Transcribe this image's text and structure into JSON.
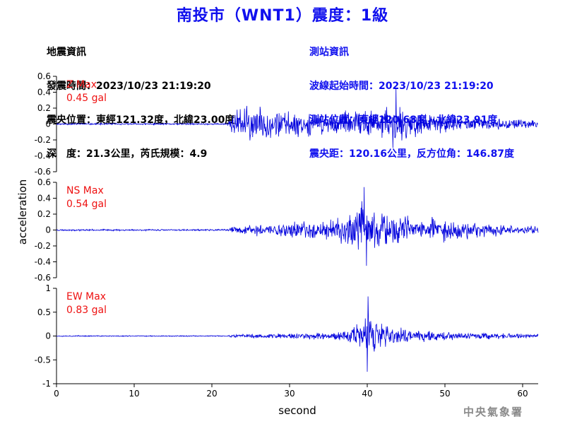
{
  "header": {
    "title": "南投市（WNT1）震度：1級",
    "title_color": "#1010ee"
  },
  "earthquake_info": {
    "heading": "地震資訊",
    "origin_time": "發震時間：2023/10/23 21:19:20",
    "epicenter": "震央位置：東經121.32度，北緯23.00度",
    "depth_magnitude": "深　度：21.3公里，芮氏規模：4.9"
  },
  "station_info": {
    "heading": "測站資訊",
    "wave_start_time": "波線起始時間：2023/10/23 21:19:20",
    "station_location": "測站位置：東經120.68度，北緯23.91度",
    "distance_azimuth": "震央距：120.16公里，反方位角：146.87度",
    "color": "#1010ee"
  },
  "agency": {
    "name": "中央氣象署",
    "color": "#8a8a8a"
  },
  "chart_data": {
    "type": "line",
    "xlabel": "second",
    "ylabel": "acceleration",
    "xlim": [
      0,
      62
    ],
    "x_ticks": [
      0,
      10,
      20,
      30,
      40,
      50,
      60
    ],
    "line_color": "#0000dd",
    "label_color": "#ee1111",
    "grid": false,
    "panels": [
      {
        "name": "Z",
        "max_label": "Z Max",
        "max_value": "0.45 gal",
        "ylim": [
          -0.6,
          0.6
        ],
        "y_ticks": [
          0.6,
          0.4,
          0.2,
          0,
          -0.2,
          -0.4,
          -0.6
        ],
        "y_tick_labels": [
          "0.6",
          "0.4",
          "0.2",
          "0",
          "-0.2",
          "-0.4",
          "-0.6"
        ],
        "envelope": [
          [
            0,
            0.012
          ],
          [
            22,
            0.012
          ],
          [
            22.4,
            0.12
          ],
          [
            23.5,
            0.24
          ],
          [
            25,
            0.26
          ],
          [
            27,
            0.22
          ],
          [
            30,
            0.18
          ],
          [
            33,
            0.16
          ],
          [
            36,
            0.16
          ],
          [
            38,
            0.18
          ],
          [
            40,
            0.2
          ],
          [
            42,
            0.24
          ],
          [
            43.5,
            0.36
          ],
          [
            45,
            0.22
          ],
          [
            47,
            0.16
          ],
          [
            50,
            0.12
          ],
          [
            55,
            0.08
          ],
          [
            60,
            0.06
          ],
          [
            62,
            0.06
          ]
        ],
        "peak_time": 43.7,
        "peak_value": 0.45,
        "trough_time": 43.3,
        "trough_value": -0.3,
        "seed": 11
      },
      {
        "name": "NS",
        "max_label": "NS Max",
        "max_value": "0.54 gal",
        "ylim": [
          -0.6,
          0.6
        ],
        "y_ticks": [
          0.6,
          0.4,
          0.2,
          0,
          -0.2,
          -0.4,
          -0.6
        ],
        "y_tick_labels": [
          "0.6",
          "0.4",
          "0.2",
          "0",
          "-0.2",
          "-0.4",
          "-0.6"
        ],
        "envelope": [
          [
            0,
            0.012
          ],
          [
            22,
            0.012
          ],
          [
            22.5,
            0.04
          ],
          [
            24,
            0.07
          ],
          [
            27,
            0.1
          ],
          [
            30,
            0.12
          ],
          [
            33,
            0.12
          ],
          [
            36,
            0.16
          ],
          [
            37.5,
            0.3
          ],
          [
            39,
            0.42
          ],
          [
            40,
            0.36
          ],
          [
            41,
            0.28
          ],
          [
            43,
            0.22
          ],
          [
            46,
            0.2
          ],
          [
            50,
            0.16
          ],
          [
            55,
            0.1
          ],
          [
            60,
            0.06
          ],
          [
            62,
            0.06
          ]
        ],
        "peak_time": 39.6,
        "peak_value": 0.54,
        "trough_time": 39.9,
        "trough_value": -0.45,
        "seed": 23
      },
      {
        "name": "EW",
        "max_label": "EW Max",
        "max_value": "0.83 gal",
        "ylim": [
          -1,
          1
        ],
        "y_ticks": [
          1,
          0.5,
          0,
          -0.5,
          -1
        ],
        "y_tick_labels": [
          "1",
          "0.5",
          "0",
          "-0.5",
          "-1"
        ],
        "envelope": [
          [
            0,
            0.012
          ],
          [
            22,
            0.012
          ],
          [
            22.5,
            0.03
          ],
          [
            25,
            0.05
          ],
          [
            30,
            0.07
          ],
          [
            35,
            0.09
          ],
          [
            37,
            0.14
          ],
          [
            38.5,
            0.32
          ],
          [
            40,
            0.5
          ],
          [
            41.5,
            0.32
          ],
          [
            43,
            0.24
          ],
          [
            46,
            0.16
          ],
          [
            50,
            0.12
          ],
          [
            55,
            0.08
          ],
          [
            60,
            0.05
          ],
          [
            62,
            0.05
          ]
        ],
        "peak_time": 40.1,
        "peak_value": 0.83,
        "trough_time": 40.0,
        "trough_value": -0.75,
        "seed": 37
      }
    ]
  }
}
